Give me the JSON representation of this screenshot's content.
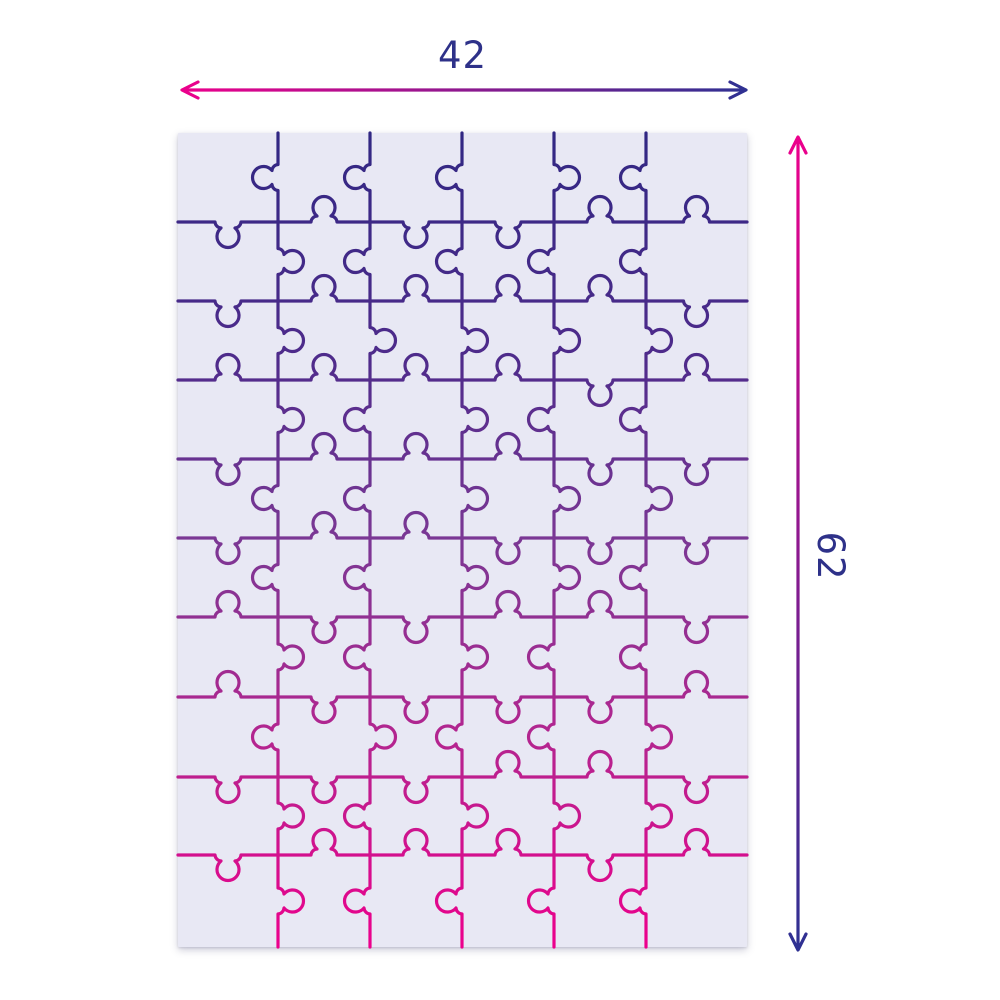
{
  "labels": {
    "width": "42",
    "height": "62"
  },
  "puzzle": {
    "columns": 6,
    "rows": 10,
    "pieces": 60
  },
  "colors": {
    "label_text": "#2e3189",
    "page_background": "#ffffff",
    "board_background": "#e8e8f4",
    "stroke_gradient": [
      "#312783",
      "#4f2b8b",
      "#7b3794",
      "#b5248f",
      "#ec008c"
    ],
    "arrow_pink": "#ec008c",
    "arrow_blue": "#2e3192"
  }
}
